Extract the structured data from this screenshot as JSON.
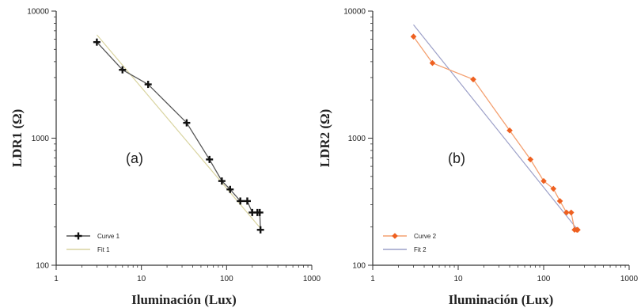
{
  "chart_data": [
    {
      "type": "line",
      "panel_label": "(a)",
      "xlabel": "Iluminación (Lux)",
      "ylabel": "LDR1 (Ω)",
      "xscale": "log",
      "yscale": "log",
      "xlim": [
        1,
        1000
      ],
      "ylim": [
        100,
        10000
      ],
      "xticks": [
        "1",
        "10",
        "100",
        "1000"
      ],
      "yticks": [
        "100",
        "1000",
        "10000"
      ],
      "grid": false,
      "legend_position": "bottom-left",
      "series": [
        {
          "name": "Curve 1",
          "kind": "line-markers",
          "marker": "plus",
          "color": "#555555",
          "marker_color": "#111111",
          "x": [
            3,
            6,
            12,
            34,
            63,
            88,
            110,
            145,
            175,
            200,
            230,
            245,
            250
          ],
          "y": [
            5700,
            3450,
            2650,
            1320,
            680,
            460,
            395,
            320,
            320,
            260,
            260,
            260,
            190
          ]
        },
        {
          "name": "Fit 1",
          "kind": "line",
          "color": "#d9d4a0",
          "x": [
            3,
            250
          ],
          "y": [
            6500,
            195
          ]
        }
      ]
    },
    {
      "type": "line",
      "panel_label": "(b)",
      "xlabel": "Iluminación (Lux)",
      "ylabel": "LDR2 (Ω)",
      "xscale": "log",
      "yscale": "log",
      "xlim": [
        1,
        1000
      ],
      "ylim": [
        100,
        10000
      ],
      "xticks": [
        "1",
        "10",
        "100",
        "1000"
      ],
      "yticks": [
        "100",
        "1000",
        "10000"
      ],
      "grid": false,
      "legend_position": "bottom-left",
      "series": [
        {
          "name": "Curve 2",
          "kind": "line-markers",
          "marker": "diamond",
          "color": "#f4a070",
          "marker_color": "#ee6020",
          "x": [
            3,
            5,
            15,
            40,
            70,
            100,
            130,
            155,
            185,
            210,
            230,
            245,
            250
          ],
          "y": [
            6300,
            3900,
            2900,
            1150,
            680,
            460,
            400,
            320,
            260,
            260,
            190,
            190,
            190
          ]
        },
        {
          "name": "Fit 2",
          "kind": "line",
          "color": "#9ca0c8",
          "x": [
            3,
            250
          ],
          "y": [
            7800,
            190
          ]
        }
      ]
    }
  ]
}
